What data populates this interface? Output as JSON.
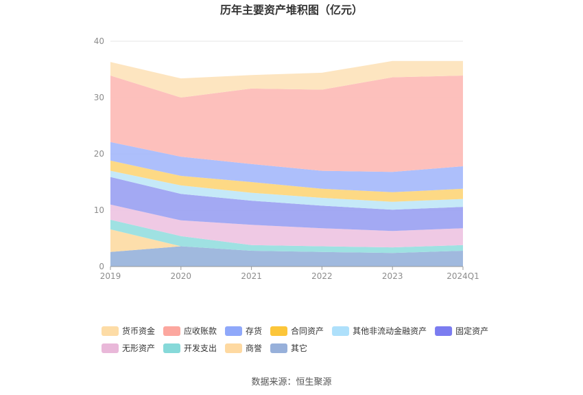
{
  "chart_data": {
    "type": "area",
    "stacked": true,
    "title": "历年主要资产堆积图（亿元）",
    "categories": [
      "2019",
      "2020",
      "2021",
      "2022",
      "2023",
      "2024Q1"
    ],
    "ylim": [
      0,
      40
    ],
    "yticks": [
      0,
      10,
      20,
      30,
      40
    ],
    "grid": true,
    "legend_position": "bottom",
    "series": [
      {
        "name": "其它",
        "color": "#9bb5dc",
        "values": [
          2.6,
          3.6,
          2.8,
          2.6,
          2.4,
          2.8
        ]
      },
      {
        "name": "商誉",
        "color": "#fddca6",
        "values": [
          4.0,
          0.0,
          0.0,
          0.0,
          0.0,
          0.0
        ]
      },
      {
        "name": "开发支出",
        "color": "#9adfe0",
        "values": [
          1.7,
          1.8,
          1.0,
          1.0,
          1.0,
          1.0
        ]
      },
      {
        "name": "无形资产",
        "color": "#eec6e3",
        "values": [
          2.7,
          2.8,
          3.6,
          3.2,
          2.9,
          3.0
        ]
      },
      {
        "name": "固定资产",
        "color": "#9ea4f2",
        "values": [
          4.9,
          4.7,
          4.3,
          4.0,
          3.8,
          3.8
        ]
      },
      {
        "name": "其他非流动金融资产",
        "color": "#c2e8f8",
        "values": [
          1.1,
          1.5,
          1.4,
          1.4,
          1.4,
          1.4
        ]
      },
      {
        "name": "合同资产",
        "color": "#fdd77e",
        "values": [
          1.8,
          1.7,
          1.9,
          1.6,
          1.7,
          1.8
        ]
      },
      {
        "name": "存货",
        "color": "#a9bcfb",
        "values": [
          3.3,
          3.4,
          3.2,
          3.2,
          3.6,
          4.0
        ]
      },
      {
        "name": "应收账款",
        "color": "#fdbdb8",
        "values": [
          11.8,
          10.5,
          13.4,
          14.4,
          16.8,
          16.1
        ]
      },
      {
        "name": "货币资金",
        "color": "#fde4bd",
        "values": [
          2.4,
          3.4,
          2.4,
          3.0,
          2.9,
          2.6
        ]
      }
    ],
    "legend": [
      {
        "name": "货币资金",
        "color": "#fddca6"
      },
      {
        "name": "应收账款",
        "color": "#fca79f"
      },
      {
        "name": "存货",
        "color": "#8fa8fa"
      },
      {
        "name": "合同资产",
        "color": "#fcc63a"
      },
      {
        "name": "其他非流动金融资产",
        "color": "#aee0fb"
      },
      {
        "name": "固定资产",
        "color": "#7b7cf0"
      },
      {
        "name": "无形资产",
        "color": "#e9b8d9"
      },
      {
        "name": "开发支出",
        "color": "#86d9d9"
      },
      {
        "name": "商誉",
        "color": "#fed9a1"
      },
      {
        "name": "其它",
        "color": "#97b0da"
      }
    ]
  },
  "source": "数据来源：恒生聚源"
}
